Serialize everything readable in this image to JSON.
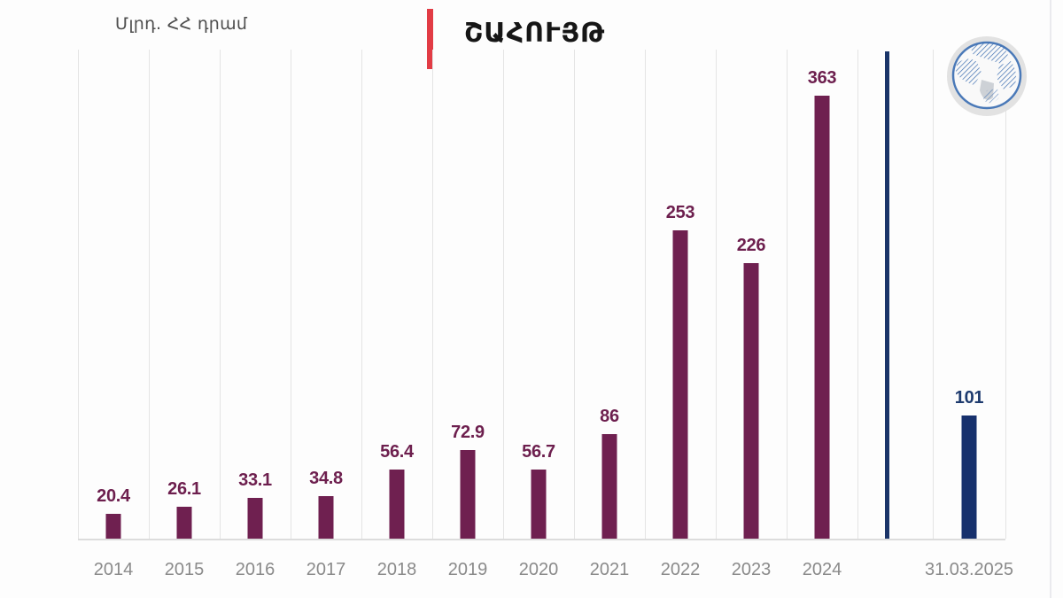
{
  "header": {
    "unit_label": "Մլրդ. ՀՀ դրամ",
    "title": "ՇԱՀՈՒՅԹ"
  },
  "logo": {
    "name": "globe-logo"
  },
  "colors": {
    "accent_red": "#e23c45",
    "bar_primary": "#6f2050",
    "bar_secondary": "#17316d",
    "label_primary": "#6d1f4e",
    "label_secondary": "#1d3a6e",
    "divider_navy": "#1b3569",
    "grid": "#e4e4e4",
    "year_label": "#8a8a8a",
    "logo_blue": "#3a6cb0"
  },
  "chart_data": {
    "type": "bar",
    "title": "ՇԱՀՈՒՅԹ",
    "ylabel": "Մլրդ. ՀՀ դրամ",
    "categories": [
      "2014",
      "2015",
      "2016",
      "2017",
      "2018",
      "2019",
      "2020",
      "2021",
      "2022",
      "2023",
      "2024",
      "31.03.2025"
    ],
    "values": [
      20.4,
      26.1,
      33.1,
      34.8,
      56.4,
      72.9,
      56.7,
      86,
      253,
      226,
      363,
      101
    ],
    "data_labels": [
      "20.4",
      "26.1",
      "33.1",
      "34.8",
      "56.4",
      "72.9",
      "56.7",
      "86",
      "253",
      "226",
      "363",
      "101"
    ],
    "highlight_index": 11,
    "divider_after_index": 10,
    "ylim": [
      0,
      440
    ],
    "grid": "vertical-only",
    "legend": "none"
  }
}
